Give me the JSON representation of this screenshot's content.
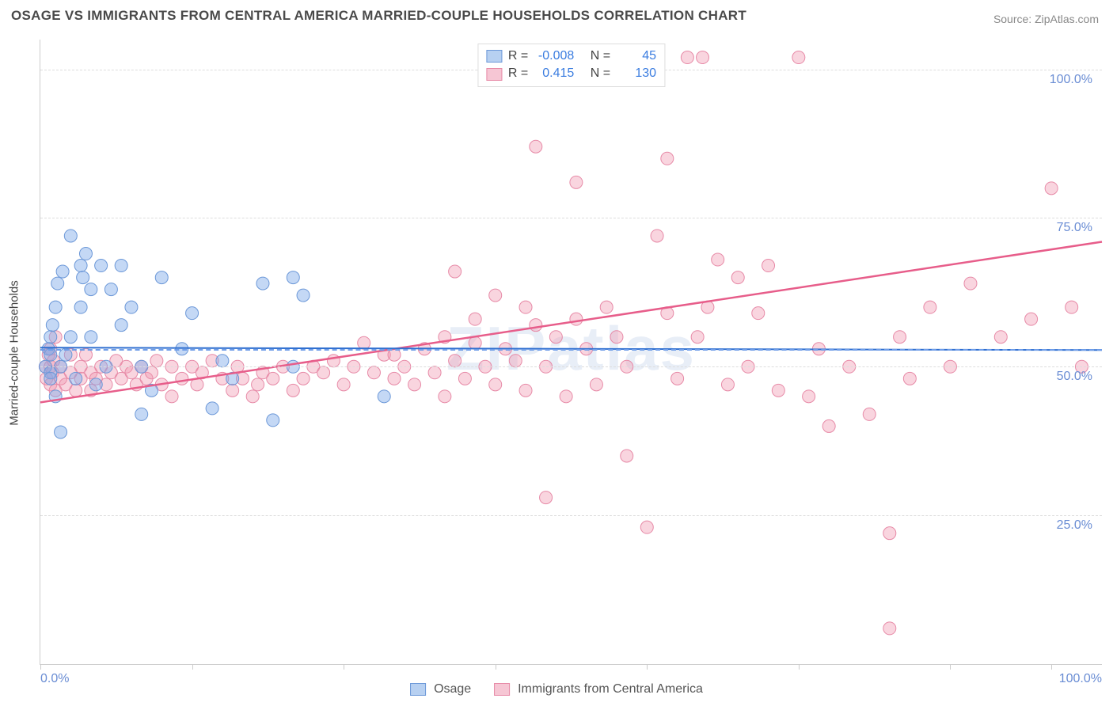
{
  "title": "OSAGE VS IMMIGRANTS FROM CENTRAL AMERICA MARRIED-COUPLE HOUSEHOLDS CORRELATION CHART",
  "source": "Source: ZipAtlas.com",
  "watermark": "ZIPatlas",
  "y_axis_label": "Married-couple Households",
  "xlim": [
    0,
    105
  ],
  "ylim": [
    0,
    105
  ],
  "y_ticks": [
    {
      "v": 25,
      "label": "25.0%"
    },
    {
      "v": 50,
      "label": "50.0%"
    },
    {
      "v": 75,
      "label": "75.0%"
    },
    {
      "v": 100,
      "label": "100.0%"
    }
  ],
  "x_ticks_labeled": [
    {
      "v": 0,
      "label": "0.0%"
    },
    {
      "v": 100,
      "label": "100.0%"
    }
  ],
  "x_ticks_unlabeled": [
    15,
    30,
    45,
    60,
    75,
    90
  ],
  "median_ref": {
    "v": 53,
    "color": "#6f9de8"
  },
  "series": {
    "osage": {
      "label": "Osage",
      "color_fill": "rgba(124,168,232,0.45)",
      "color_stroke": "#6c98d8",
      "swatch_fill": "#b7d0f1",
      "swatch_stroke": "#6c98d8",
      "R": "-0.008",
      "N": "45",
      "trend": {
        "x1": 0,
        "y1": 53.2,
        "x2": 105,
        "y2": 52.8,
        "color": "#2f6fd0",
        "width": 2
      },
      "points": [
        [
          0.5,
          50
        ],
        [
          0.8,
          53
        ],
        [
          1,
          55
        ],
        [
          1,
          49
        ],
        [
          1,
          48
        ],
        [
          1,
          52
        ],
        [
          1.2,
          57
        ],
        [
          1.5,
          60
        ],
        [
          1.5,
          45
        ],
        [
          1.7,
          64
        ],
        [
          2,
          50
        ],
        [
          2,
          39
        ],
        [
          2.2,
          66
        ],
        [
          2.5,
          52
        ],
        [
          3,
          55
        ],
        [
          3,
          72
        ],
        [
          3.5,
          48
        ],
        [
          4,
          67
        ],
        [
          4,
          60
        ],
        [
          4.2,
          65
        ],
        [
          4.5,
          69
        ],
        [
          5,
          63
        ],
        [
          5,
          55
        ],
        [
          5.5,
          47
        ],
        [
          6,
          67
        ],
        [
          6.5,
          50
        ],
        [
          7,
          63
        ],
        [
          8,
          67
        ],
        [
          8,
          57
        ],
        [
          9,
          60
        ],
        [
          10,
          50
        ],
        [
          10,
          42
        ],
        [
          11,
          46
        ],
        [
          12,
          65
        ],
        [
          14,
          53
        ],
        [
          15,
          59
        ],
        [
          17,
          43
        ],
        [
          18,
          51
        ],
        [
          19,
          48
        ],
        [
          22,
          64
        ],
        [
          23,
          41
        ],
        [
          25,
          65
        ],
        [
          26,
          62
        ],
        [
          25,
          50
        ],
        [
          34,
          45
        ]
      ]
    },
    "immigrants": {
      "label": "Immigrants from Central America",
      "color_fill": "rgba(240,150,175,0.40)",
      "color_stroke": "#e78aa7",
      "swatch_fill": "#f6c6d4",
      "swatch_stroke": "#e78aa7",
      "R": "0.415",
      "N": "130",
      "trend": {
        "x1": 0,
        "y1": 44,
        "x2": 105,
        "y2": 71,
        "color": "#e75d8a",
        "width": 2.5
      },
      "points": [
        [
          0.5,
          50
        ],
        [
          0.6,
          48
        ],
        [
          0.8,
          52
        ],
        [
          1,
          50
        ],
        [
          1,
          47
        ],
        [
          1,
          53
        ],
        [
          1.2,
          49
        ],
        [
          1.3,
          51
        ],
        [
          1.5,
          55
        ],
        [
          1.5,
          46
        ],
        [
          2,
          48
        ],
        [
          2,
          50
        ],
        [
          2.5,
          47
        ],
        [
          3,
          49
        ],
        [
          3,
          52
        ],
        [
          3.5,
          46
        ],
        [
          4,
          48
        ],
        [
          4,
          50
        ],
        [
          4.5,
          52
        ],
        [
          5,
          49
        ],
        [
          5,
          46
        ],
        [
          5.5,
          48
        ],
        [
          6,
          50
        ],
        [
          6.5,
          47
        ],
        [
          7,
          49
        ],
        [
          7.5,
          51
        ],
        [
          8,
          48
        ],
        [
          8.5,
          50
        ],
        [
          9,
          49
        ],
        [
          9.5,
          47
        ],
        [
          10,
          50
        ],
        [
          10.5,
          48
        ],
        [
          11,
          49
        ],
        [
          11.5,
          51
        ],
        [
          12,
          47
        ],
        [
          13,
          50
        ],
        [
          13,
          45
        ],
        [
          14,
          48
        ],
        [
          15,
          50
        ],
        [
          15.5,
          47
        ],
        [
          16,
          49
        ],
        [
          17,
          51
        ],
        [
          18,
          48
        ],
        [
          19,
          46
        ],
        [
          19.5,
          50
        ],
        [
          20,
          48
        ],
        [
          21,
          45
        ],
        [
          21.5,
          47
        ],
        [
          22,
          49
        ],
        [
          23,
          48
        ],
        [
          24,
          50
        ],
        [
          25,
          46
        ],
        [
          26,
          48
        ],
        [
          27,
          50
        ],
        [
          28,
          49
        ],
        [
          29,
          51
        ],
        [
          30,
          47
        ],
        [
          31,
          50
        ],
        [
          32,
          54
        ],
        [
          33,
          49
        ],
        [
          34,
          52
        ],
        [
          35,
          48
        ],
        [
          35,
          52
        ],
        [
          36,
          50
        ],
        [
          37,
          47
        ],
        [
          38,
          53
        ],
        [
          39,
          49
        ],
        [
          40,
          55
        ],
        [
          40,
          45
        ],
        [
          41,
          51
        ],
        [
          41,
          66
        ],
        [
          42,
          48
        ],
        [
          43,
          58
        ],
        [
          43,
          54
        ],
        [
          44,
          50
        ],
        [
          45,
          47
        ],
        [
          45,
          62
        ],
        [
          46,
          53
        ],
        [
          47,
          51
        ],
        [
          48,
          46
        ],
        [
          48,
          60
        ],
        [
          49,
          57
        ],
        [
          49,
          87
        ],
        [
          50,
          50
        ],
        [
          50,
          28
        ],
        [
          51,
          55
        ],
        [
          52,
          45
        ],
        [
          53,
          81
        ],
        [
          53,
          58
        ],
        [
          54,
          53
        ],
        [
          55,
          47
        ],
        [
          56,
          60
        ],
        [
          57,
          55
        ],
        [
          58,
          50
        ],
        [
          58,
          35
        ],
        [
          58,
          102
        ],
        [
          60,
          23
        ],
        [
          61,
          72
        ],
        [
          62,
          85
        ],
        [
          62,
          59
        ],
        [
          63,
          48
        ],
        [
          64,
          102
        ],
        [
          65,
          55
        ],
        [
          65.5,
          102
        ],
        [
          66,
          60
        ],
        [
          67,
          68
        ],
        [
          68,
          47
        ],
        [
          69,
          65
        ],
        [
          70,
          50
        ],
        [
          71,
          59
        ],
        [
          72,
          67
        ],
        [
          73,
          46
        ],
        [
          75,
          102
        ],
        [
          76,
          45
        ],
        [
          77,
          53
        ],
        [
          78,
          40
        ],
        [
          80,
          50
        ],
        [
          82,
          42
        ],
        [
          84,
          6
        ],
        [
          84,
          22
        ],
        [
          85,
          55
        ],
        [
          86,
          48
        ],
        [
          88,
          60
        ],
        [
          90,
          50
        ],
        [
          92,
          64
        ],
        [
          95,
          55
        ],
        [
          98,
          58
        ],
        [
          100,
          80
        ],
        [
          102,
          60
        ],
        [
          103,
          50
        ]
      ]
    }
  },
  "marker_radius": 8,
  "plot": {
    "bg": "#ffffff",
    "grid_color": "#dddddd",
    "axis_color": "#cccccc"
  },
  "legend_labels": {
    "R": "R =",
    "N": "N ="
  }
}
